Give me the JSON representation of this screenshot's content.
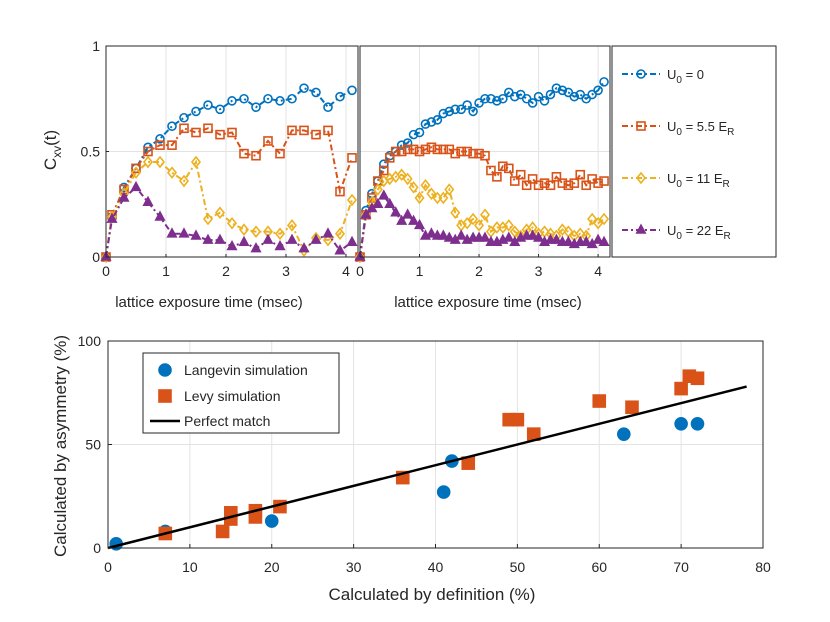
{
  "chart_data": [
    {
      "type": "line",
      "panel": "left",
      "ylabel": "C_xv(t)",
      "xlabel": "lattice exposure time (msec)",
      "xlim": [
        0,
        4.2
      ],
      "ylim": [
        0,
        1
      ],
      "xticks": [
        "0",
        "1",
        "2",
        "3",
        "4"
      ],
      "yticks": [
        "0",
        "0.5",
        "1"
      ],
      "grid": true,
      "x": [
        0,
        0.1,
        0.3,
        0.5,
        0.7,
        0.9,
        1.1,
        1.3,
        1.5,
        1.7,
        1.9,
        2.1,
        2.3,
        2.5,
        2.7,
        2.9,
        3.1,
        3.3,
        3.5,
        3.7,
        3.9,
        4.1
      ],
      "series": [
        {
          "name": "U0 = 0",
          "color": "#0072BD",
          "marker": "circle",
          "values": [
            0,
            0.19,
            0.33,
            0.42,
            0.52,
            0.56,
            0.62,
            0.66,
            0.69,
            0.72,
            0.7,
            0.74,
            0.75,
            0.71,
            0.75,
            0.74,
            0.75,
            0.8,
            0.78,
            0.71,
            0.76,
            0.79
          ]
        },
        {
          "name": "U0 = 5.5 ER",
          "color": "#D95319",
          "marker": "square",
          "values": [
            0,
            0.2,
            0.32,
            0.42,
            0.5,
            0.53,
            0.53,
            0.61,
            0.59,
            0.61,
            0.58,
            0.59,
            0.49,
            0.48,
            0.55,
            0.49,
            0.6,
            0.6,
            0.58,
            0.6,
            0.31,
            0.47
          ]
        },
        {
          "name": "U0 = 11 ER",
          "color": "#EDB120",
          "marker": "diamond",
          "values": [
            0,
            0.19,
            0.3,
            0.4,
            0.45,
            0.45,
            0.4,
            0.36,
            0.45,
            0.18,
            0.21,
            0.16,
            0.13,
            0.12,
            0.12,
            0.11,
            0.15,
            0.03,
            0.09,
            0.08,
            0.11,
            0.27
          ]
        },
        {
          "name": "U0 = 22 ER",
          "color": "#7E2F8E",
          "marker": "triangle",
          "values": [
            0,
            0.18,
            0.28,
            0.33,
            0.26,
            0.19,
            0.11,
            0.11,
            0.1,
            0.08,
            0.08,
            0.05,
            0.07,
            0.04,
            0.08,
            0.05,
            0.08,
            0.04,
            0.08,
            0.11,
            0.03,
            0.07
          ]
        }
      ]
    },
    {
      "type": "line",
      "panel": "right",
      "xlabel": "lattice exposure time (msec)",
      "xlim": [
        0,
        4.2
      ],
      "ylim": [
        0,
        1
      ],
      "xticks": [
        "0",
        "1",
        "2",
        "3",
        "4"
      ],
      "grid": true,
      "x": [
        0,
        0.1,
        0.2,
        0.3,
        0.4,
        0.5,
        0.6,
        0.7,
        0.8,
        0.9,
        1.0,
        1.1,
        1.2,
        1.3,
        1.4,
        1.5,
        1.6,
        1.7,
        1.8,
        1.9,
        2.0,
        2.1,
        2.2,
        2.3,
        2.4,
        2.5,
        2.6,
        2.7,
        2.8,
        2.9,
        3.0,
        3.1,
        3.2,
        3.3,
        3.4,
        3.5,
        3.6,
        3.7,
        3.8,
        3.9,
        4.0,
        4.1
      ],
      "series": [
        {
          "name": "U0 = 0",
          "color": "#0072BD",
          "marker": "circle",
          "values": [
            0,
            0.22,
            0.3,
            0.36,
            0.44,
            0.48,
            0.5,
            0.53,
            0.54,
            0.58,
            0.59,
            0.63,
            0.64,
            0.65,
            0.68,
            0.69,
            0.7,
            0.7,
            0.72,
            0.69,
            0.73,
            0.75,
            0.75,
            0.74,
            0.75,
            0.78,
            0.76,
            0.77,
            0.75,
            0.73,
            0.76,
            0.74,
            0.77,
            0.8,
            0.79,
            0.78,
            0.76,
            0.77,
            0.75,
            0.77,
            0.79,
            0.83
          ]
        },
        {
          "name": "U0 = 5.5 ER",
          "color": "#D95319",
          "marker": "square",
          "values": [
            0,
            0.2,
            0.28,
            0.36,
            0.41,
            0.47,
            0.5,
            0.5,
            0.51,
            0.51,
            0.5,
            0.51,
            0.52,
            0.51,
            0.51,
            0.51,
            0.49,
            0.5,
            0.5,
            0.49,
            0.49,
            0.48,
            0.41,
            0.38,
            0.43,
            0.42,
            0.36,
            0.39,
            0.34,
            0.37,
            0.34,
            0.35,
            0.34,
            0.38,
            0.35,
            0.34,
            0.35,
            0.39,
            0.34,
            0.37,
            0.35,
            0.36
          ]
        },
        {
          "name": "U0 = 11 ER",
          "color": "#EDB120",
          "marker": "diamond",
          "values": [
            0,
            0.2,
            0.26,
            0.32,
            0.36,
            0.37,
            0.38,
            0.39,
            0.37,
            0.33,
            0.28,
            0.34,
            0.3,
            0.28,
            0.28,
            0.32,
            0.21,
            0.15,
            0.16,
            0.18,
            0.15,
            0.2,
            0.12,
            0.14,
            0.14,
            0.15,
            0.12,
            0.1,
            0.13,
            0.14,
            0.11,
            0.12,
            0.11,
            0.1,
            0.13,
            0.12,
            0.1,
            0.11,
            0.1,
            0.18,
            0.16,
            0.18
          ]
        },
        {
          "name": "U0 = 22 ER",
          "color": "#7E2F8E",
          "marker": "triangle",
          "values": [
            0,
            0.2,
            0.23,
            0.25,
            0.29,
            0.25,
            0.21,
            0.17,
            0.2,
            0.17,
            0.15,
            0.1,
            0.11,
            0.1,
            0.1,
            0.09,
            0.08,
            0.1,
            0.08,
            0.09,
            0.09,
            0.09,
            0.07,
            0.07,
            0.08,
            0.09,
            0.07,
            0.09,
            0.1,
            0.1,
            0.09,
            0.07,
            0.08,
            0.08,
            0.07,
            0.07,
            0.06,
            0.07,
            0.07,
            0.06,
            0.08,
            0.07
          ]
        }
      ]
    },
    {
      "type": "scatter",
      "panel": "bottom",
      "xlabel": "Calculated by definition (%)",
      "ylabel": "Calculated by asymmetry (%)",
      "xlim": [
        0,
        80
      ],
      "ylim": [
        0,
        100
      ],
      "xticks": [
        "0",
        "10",
        "20",
        "30",
        "40",
        "50",
        "60",
        "70",
        "80"
      ],
      "yticks": [
        "0",
        "50",
        "100"
      ],
      "grid": true,
      "legend_position": "top-left",
      "series": [
        {
          "name": "Langevin simulation",
          "color": "#0072BD",
          "marker": "circle",
          "x": [
            1,
            7,
            20,
            41,
            42,
            63,
            70,
            72
          ],
          "y": [
            2,
            8,
            13,
            27,
            42,
            55,
            60,
            60
          ]
        },
        {
          "name": "Levy simulation",
          "color": "#D95319",
          "marker": "square",
          "x": [
            7,
            14,
            15,
            15,
            18,
            18,
            21,
            36,
            44,
            49,
            50,
            52,
            60,
            64,
            70,
            71,
            72
          ],
          "y": [
            7,
            8,
            14,
            17,
            15,
            18,
            20,
            34,
            41,
            62,
            62,
            55,
            71,
            68,
            77,
            83,
            82
          ]
        },
        {
          "name": "Perfect match",
          "color": "#000000",
          "marker": "none",
          "x": [
            0,
            78
          ],
          "y": [
            0,
            78
          ]
        }
      ]
    }
  ],
  "legend_top": {
    "entries": [
      {
        "prefix": "U",
        "sub": "0",
        "text": " = 0",
        "er": false
      },
      {
        "prefix": "U",
        "sub": "0",
        "text": " = 5.5 E",
        "er": true
      },
      {
        "prefix": "U",
        "sub": "0",
        "text": " = 11 E",
        "er": true
      },
      {
        "prefix": "U",
        "sub": "0",
        "text": " = 22 E",
        "er": true
      }
    ],
    "er_sub": "R"
  },
  "ylabel_top": {
    "main": "C",
    "sub": "xv",
    "rest": "(t)"
  }
}
